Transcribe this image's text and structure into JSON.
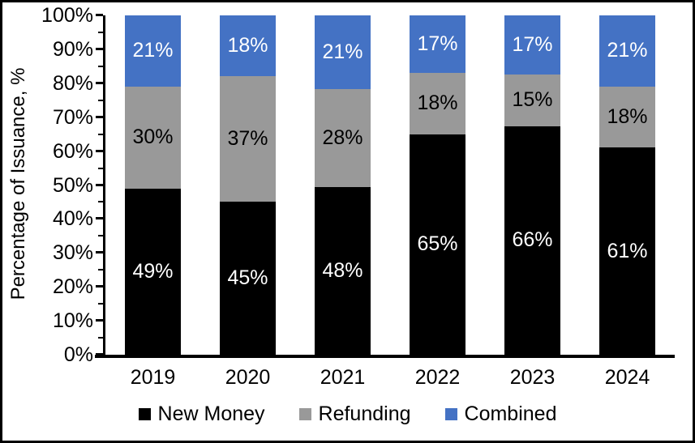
{
  "chart_data": {
    "type": "bar",
    "variant": "stacked-percentage",
    "title": "",
    "xlabel": "",
    "ylabel": "Percentage of Issuance, %",
    "ylim": [
      0,
      100
    ],
    "ytick_step": 10,
    "minor_tick_step": 5,
    "ytick_labels": [
      "0%",
      "10%",
      "20%",
      "30%",
      "40%",
      "50%",
      "60%",
      "70%",
      "80%",
      "90%",
      "100%"
    ],
    "categories": [
      "2019",
      "2020",
      "2021",
      "2022",
      "2023",
      "2024"
    ],
    "series": [
      {
        "name": "New Money",
        "color": "#000000",
        "label_color": "#ffffff",
        "values": [
          49,
          45,
          48,
          65,
          66,
          61
        ],
        "labels": [
          "49%",
          "45%",
          "48%",
          "65%",
          "66%",
          "61%"
        ]
      },
      {
        "name": "Refunding",
        "color": "#999999",
        "label_color": "#000000",
        "values": [
          30,
          37,
          28,
          18,
          15,
          18
        ],
        "labels": [
          "30%",
          "37%",
          "28%",
          "18%",
          "15%",
          "18%"
        ]
      },
      {
        "name": "Combined",
        "color": "#4472C4",
        "label_color": "#ffffff",
        "values": [
          21,
          18,
          21,
          17,
          17,
          21
        ],
        "labels": [
          "21%",
          "18%",
          "21%",
          "17%",
          "17%",
          "21%"
        ]
      }
    ],
    "legend_position": "bottom",
    "grid": false,
    "axis_color": "#000000",
    "background_color": "#ffffff",
    "border_color": "#000000"
  }
}
